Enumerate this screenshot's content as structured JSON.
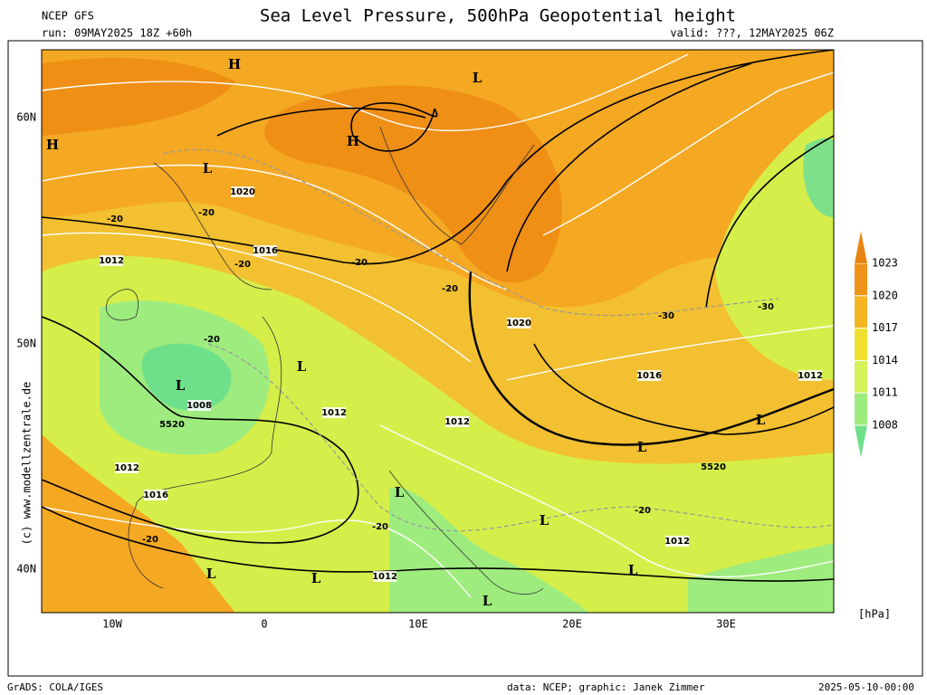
{
  "header": {
    "source": "NCEP GFS",
    "title": "Sea Level Pressure, 500hPa Geopotential height",
    "run": "run: 09MAY2025 18Z +60h",
    "valid": "valid: ???, 12MAY2025 06Z"
  },
  "map": {
    "lat_labels": [
      "60N",
      "50N",
      "40N"
    ],
    "lon_labels": [
      "10W",
      "0",
      "10E",
      "20E",
      "30E"
    ],
    "pressure_labels": [
      "1020",
      "1016",
      "1012",
      "1008",
      "1012",
      "1012",
      "1020",
      "1016",
      "1012",
      "1012",
      "1016",
      "1012",
      "1012"
    ],
    "height_labels": [
      "5520",
      "5520",
      "-20",
      "-20",
      "-20",
      "-20",
      "-20",
      "-20",
      "-20",
      "-20",
      "-20",
      "-30",
      "-30"
    ],
    "centers": [
      "H",
      "H",
      "H",
      "L",
      "L",
      "L",
      "L",
      "L",
      "L",
      "L",
      "L",
      "L",
      "L",
      "L",
      "L"
    ]
  },
  "colorbar": {
    "unit": "[hPa]",
    "ticks": [
      1008,
      1011,
      1014,
      1017,
      1020,
      1023
    ],
    "colors": [
      "#6ee08a",
      "#9eec7e",
      "#d4f25a",
      "#f2e030",
      "#f5b522",
      "#ef9418",
      "#e68512"
    ]
  },
  "side": "(c) www.modellzentrale.de",
  "footer": {
    "left": "GrADS: COLA/IGES",
    "center": "data: NCEP; graphic: Janek Zimmer",
    "right": "2025-05-10-00:00"
  }
}
